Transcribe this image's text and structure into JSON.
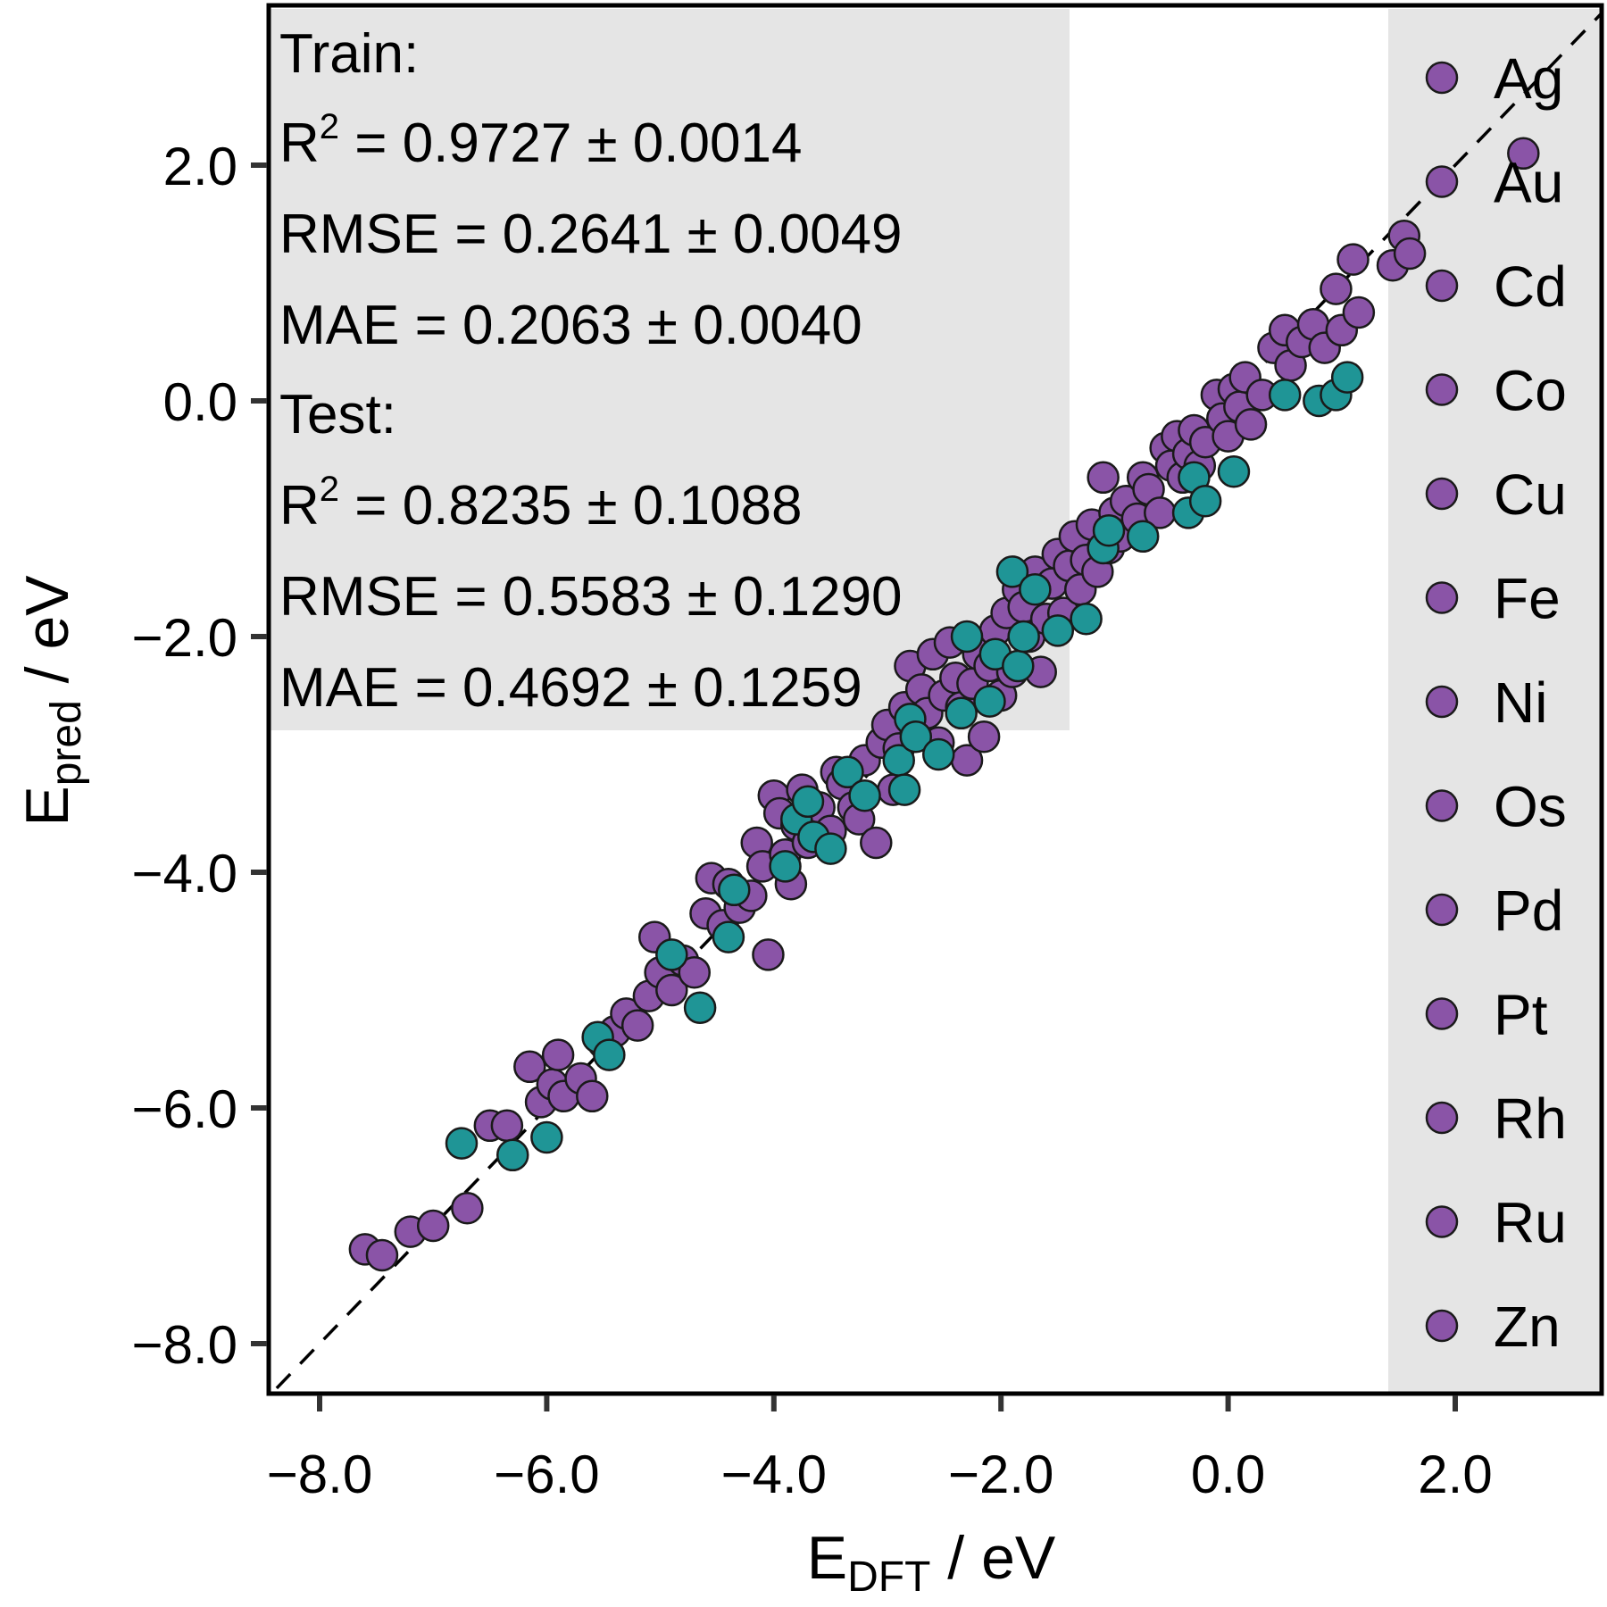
{
  "chart_data": {
    "type": "scatter",
    "xlabel_main": "E",
    "xlabel_sub": "DFT",
    "xlabel_unit": " / eV",
    "ylabel_main": "E",
    "ylabel_sub": "pred",
    "ylabel_unit": " / eV",
    "xlim": [
      -8.4,
      3.3
    ],
    "ylim": [
      -8.4,
      3.3
    ],
    "xticks": [
      -8.0,
      -6.0,
      -4.0,
      -2.0,
      0.0,
      2.0
    ],
    "yticks": [
      -8.0,
      -6.0,
      -4.0,
      -2.0,
      0.0,
      2.0
    ],
    "xtick_labels": [
      "−8.0",
      "−6.0",
      "−4.0",
      "−2.0",
      "0.0",
      "2.0"
    ],
    "ytick_labels": [
      "−8.0",
      "−6.0",
      "−4.0",
      "−2.0",
      "0.0",
      "2.0"
    ],
    "parity_line": true,
    "grid": false,
    "legend_placement": "right",
    "colors": {
      "train": "#8a54a7",
      "test": "#1f9596",
      "edge": "#1a1a1a",
      "box": "#e5e5e5"
    },
    "stats": {
      "train_header": "Train:",
      "train_r2_prefix": "R",
      "train_r2_sup": "2",
      "train_r2_value": " = 0.9727 ± 0.0014",
      "train_rmse": "RMSE = 0.2641 ± 0.0049",
      "train_mae": "MAE = 0.2063 ± 0.0040",
      "test_header": "Test:",
      "test_r2_prefix": "R",
      "test_r2_sup": "2",
      "test_r2_value": " = 0.8235 ± 0.1088",
      "test_rmse": "RMSE = 0.5583 ± 0.1290",
      "test_mae": "MAE = 0.4692 ± 0.1259"
    },
    "legend": [
      "Ag",
      "Au",
      "Cd",
      "Co",
      "Cu",
      "Fe",
      "Ni",
      "Os",
      "Pd",
      "Pt",
      "Rh",
      "Ru",
      "Zn"
    ],
    "series": [
      {
        "name": "train",
        "points": [
          [
            -7.6,
            -7.2
          ],
          [
            -7.45,
            -7.25
          ],
          [
            -7.2,
            -7.05
          ],
          [
            -7.0,
            -7.0
          ],
          [
            -6.7,
            -6.85
          ],
          [
            -6.5,
            -6.15
          ],
          [
            -6.35,
            -6.15
          ],
          [
            -6.15,
            -5.65
          ],
          [
            -6.05,
            -5.95
          ],
          [
            -5.95,
            -5.8
          ],
          [
            -5.9,
            -5.55
          ],
          [
            -5.85,
            -5.9
          ],
          [
            -5.7,
            -5.75
          ],
          [
            -5.6,
            -5.9
          ],
          [
            -5.5,
            -5.45
          ],
          [
            -5.4,
            -5.35
          ],
          [
            -5.3,
            -5.2
          ],
          [
            -5.2,
            -5.3
          ],
          [
            -5.1,
            -5.05
          ],
          [
            -5.05,
            -4.55
          ],
          [
            -5.0,
            -4.85
          ],
          [
            -4.9,
            -5.0
          ],
          [
            -4.8,
            -4.75
          ],
          [
            -4.7,
            -4.85
          ],
          [
            -4.6,
            -4.35
          ],
          [
            -4.55,
            -4.05
          ],
          [
            -4.45,
            -4.45
          ],
          [
            -4.4,
            -4.1
          ],
          [
            -4.3,
            -4.3
          ],
          [
            -4.2,
            -4.2
          ],
          [
            -4.15,
            -3.75
          ],
          [
            -4.1,
            -3.95
          ],
          [
            -4.05,
            -4.7
          ],
          [
            -4.0,
            -3.35
          ],
          [
            -3.95,
            -3.5
          ],
          [
            -3.9,
            -3.85
          ],
          [
            -3.85,
            -4.1
          ],
          [
            -3.8,
            -3.6
          ],
          [
            -3.75,
            -3.3
          ],
          [
            -3.7,
            -3.75
          ],
          [
            -3.6,
            -3.45
          ],
          [
            -3.5,
            -3.65
          ],
          [
            -3.45,
            -3.15
          ],
          [
            -3.4,
            -3.25
          ],
          [
            -3.3,
            -3.45
          ],
          [
            -3.25,
            -3.55
          ],
          [
            -3.2,
            -3.05
          ],
          [
            -3.1,
            -3.75
          ],
          [
            -3.05,
            -2.9
          ],
          [
            -3.0,
            -2.75
          ],
          [
            -2.95,
            -3.3
          ],
          [
            -2.9,
            -2.95
          ],
          [
            -2.85,
            -2.6
          ],
          [
            -2.8,
            -2.25
          ],
          [
            -2.75,
            -2.8
          ],
          [
            -2.7,
            -2.45
          ],
          [
            -2.65,
            -2.65
          ],
          [
            -2.6,
            -2.15
          ],
          [
            -2.55,
            -2.9
          ],
          [
            -2.5,
            -2.5
          ],
          [
            -2.45,
            -2.05
          ],
          [
            -2.4,
            -2.35
          ],
          [
            -2.35,
            -2.6
          ],
          [
            -2.3,
            -3.05
          ],
          [
            -2.25,
            -2.4
          ],
          [
            -2.2,
            -2.15
          ],
          [
            -2.15,
            -2.85
          ],
          [
            -2.1,
            -2.25
          ],
          [
            -2.05,
            -1.95
          ],
          [
            -2.0,
            -2.5
          ],
          [
            -1.95,
            -1.8
          ],
          [
            -1.9,
            -2.3
          ],
          [
            -1.85,
            -1.6
          ],
          [
            -1.8,
            -1.75
          ],
          [
            -1.75,
            -2.0
          ],
          [
            -1.7,
            -1.45
          ],
          [
            -1.65,
            -2.3
          ],
          [
            -1.6,
            -1.85
          ],
          [
            -1.55,
            -1.55
          ],
          [
            -1.5,
            -1.3
          ],
          [
            -1.45,
            -1.8
          ],
          [
            -1.4,
            -1.4
          ],
          [
            -1.35,
            -1.15
          ],
          [
            -1.3,
            -1.6
          ],
          [
            -1.25,
            -1.35
          ],
          [
            -1.2,
            -1.05
          ],
          [
            -1.15,
            -1.45
          ],
          [
            -1.1,
            -0.65
          ],
          [
            -1.05,
            -1.25
          ],
          [
            -1.0,
            -0.95
          ],
          [
            -0.95,
            -1.15
          ],
          [
            -0.9,
            -0.85
          ],
          [
            -0.8,
            -1.0
          ],
          [
            -0.75,
            -0.65
          ],
          [
            -0.7,
            -0.75
          ],
          [
            -0.6,
            -0.95
          ],
          [
            -0.55,
            -0.4
          ],
          [
            -0.5,
            -0.55
          ],
          [
            -0.45,
            -0.3
          ],
          [
            -0.4,
            -0.65
          ],
          [
            -0.35,
            -0.45
          ],
          [
            -0.3,
            -0.25
          ],
          [
            -0.25,
            -0.55
          ],
          [
            -0.2,
            -0.35
          ],
          [
            -0.1,
            0.05
          ],
          [
            -0.05,
            -0.15
          ],
          [
            0.0,
            -0.3
          ],
          [
            0.05,
            0.1
          ],
          [
            0.1,
            -0.05
          ],
          [
            0.15,
            0.2
          ],
          [
            0.2,
            -0.2
          ],
          [
            0.3,
            0.05
          ],
          [
            0.4,
            0.45
          ],
          [
            0.5,
            0.6
          ],
          [
            0.55,
            0.3
          ],
          [
            0.65,
            0.5
          ],
          [
            0.75,
            0.65
          ],
          [
            0.85,
            0.45
          ],
          [
            0.95,
            0.95
          ],
          [
            1.0,
            0.6
          ],
          [
            1.1,
            1.2
          ],
          [
            1.15,
            0.75
          ],
          [
            1.45,
            1.15
          ],
          [
            1.55,
            1.4
          ],
          [
            1.6,
            1.25
          ],
          [
            2.6,
            2.1
          ]
        ]
      },
      {
        "name": "test",
        "points": [
          [
            -6.75,
            -6.3
          ],
          [
            -6.3,
            -6.4
          ],
          [
            -6.0,
            -6.25
          ],
          [
            -5.55,
            -5.4
          ],
          [
            -5.45,
            -5.55
          ],
          [
            -4.9,
            -4.7
          ],
          [
            -4.65,
            -5.15
          ],
          [
            -4.4,
            -4.55
          ],
          [
            -4.35,
            -4.15
          ],
          [
            -3.9,
            -3.95
          ],
          [
            -3.8,
            -3.55
          ],
          [
            -3.7,
            -3.4
          ],
          [
            -3.65,
            -3.7
          ],
          [
            -3.5,
            -3.8
          ],
          [
            -3.35,
            -3.15
          ],
          [
            -3.2,
            -3.35
          ],
          [
            -2.9,
            -3.05
          ],
          [
            -2.85,
            -3.3
          ],
          [
            -2.8,
            -2.7
          ],
          [
            -2.75,
            -2.85
          ],
          [
            -2.55,
            -3.0
          ],
          [
            -2.35,
            -2.65
          ],
          [
            -2.3,
            -2.0
          ],
          [
            -2.1,
            -2.55
          ],
          [
            -2.05,
            -2.15
          ],
          [
            -1.9,
            -1.45
          ],
          [
            -1.85,
            -2.25
          ],
          [
            -1.8,
            -2.0
          ],
          [
            -1.7,
            -1.6
          ],
          [
            -1.5,
            -1.95
          ],
          [
            -1.25,
            -1.85
          ],
          [
            -1.1,
            -1.25
          ],
          [
            -1.05,
            -1.1
          ],
          [
            -0.75,
            -1.15
          ],
          [
            -0.35,
            -0.95
          ],
          [
            -0.3,
            -0.65
          ],
          [
            -0.2,
            -0.85
          ],
          [
            0.05,
            -0.6
          ],
          [
            0.5,
            0.05
          ],
          [
            0.8,
            0.0
          ],
          [
            0.95,
            0.05
          ],
          [
            1.05,
            0.2
          ]
        ]
      }
    ]
  }
}
